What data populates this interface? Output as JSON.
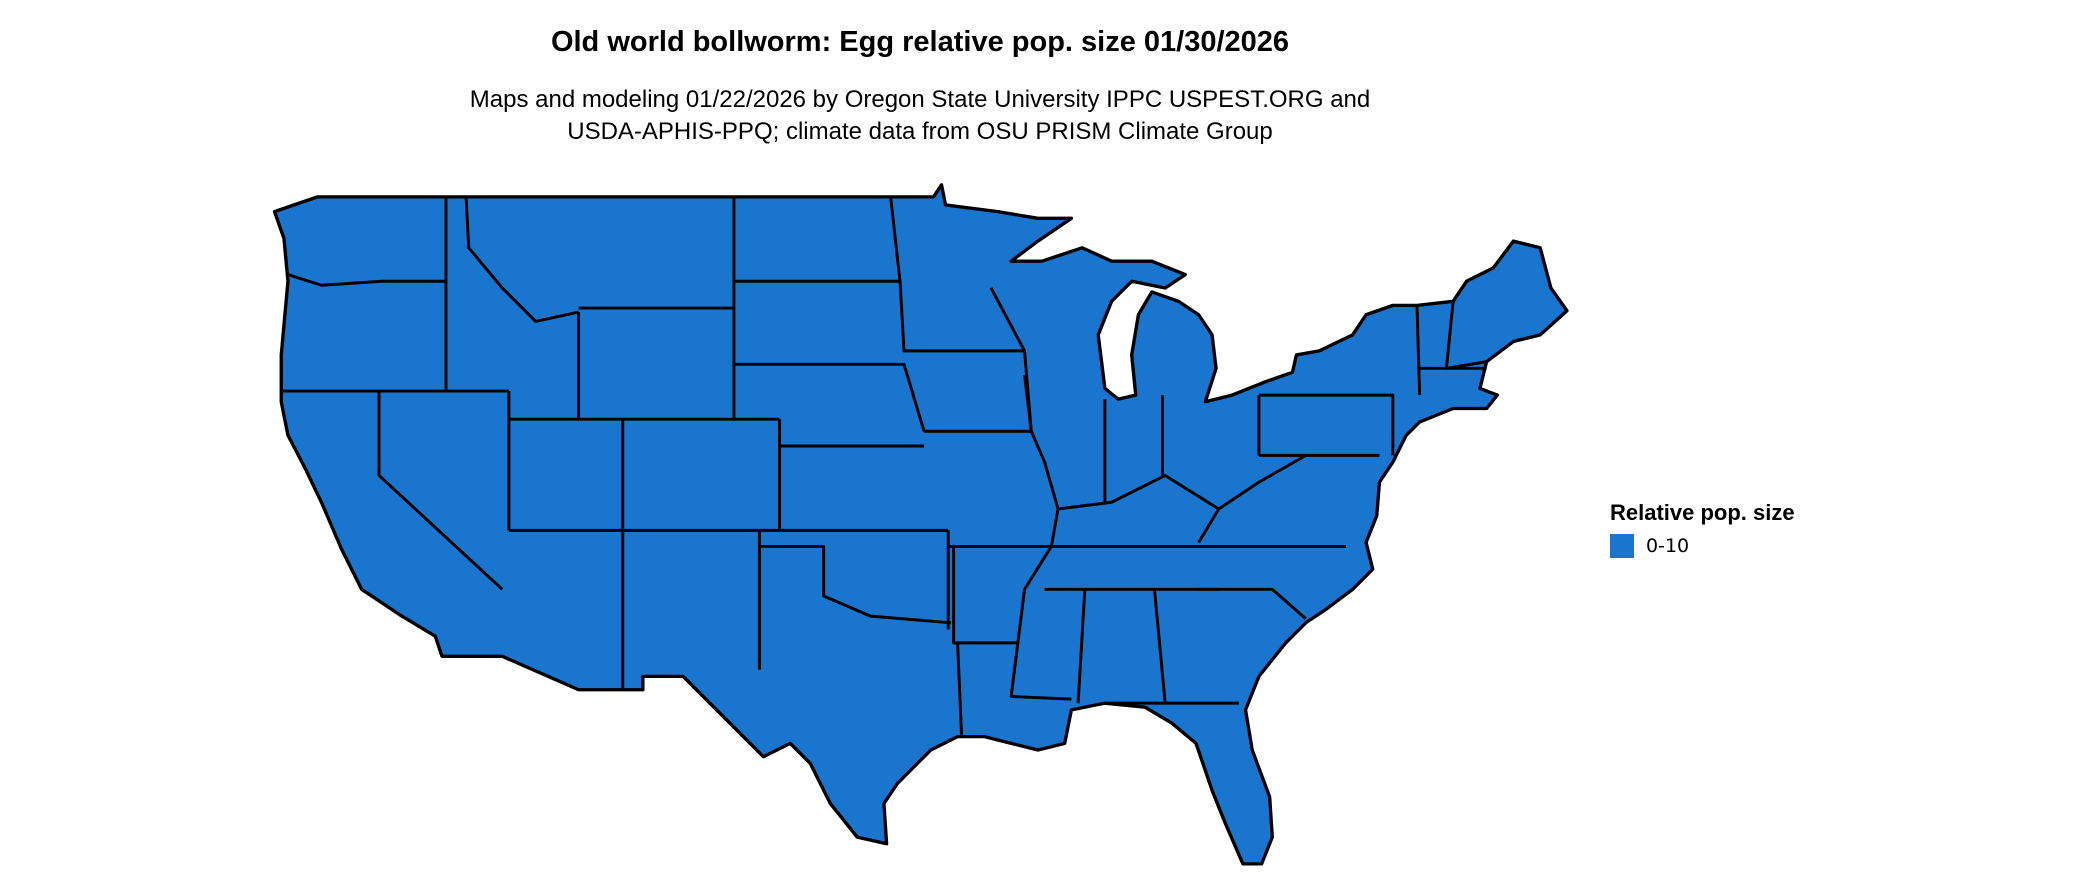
{
  "title": "Old world bollworm: Egg relative pop. size 01/30/2026",
  "subtitle_line1": "Maps and modeling 01/22/2026 by Oregon State University IPPC USPEST.ORG and",
  "subtitle_line2": "USDA-APHIS-PPQ; climate data from OSU PRISM Climate Group",
  "map": {
    "region": "Contiguous United States",
    "fill_color": "#1a75cf",
    "border_color": "#000000"
  },
  "legend": {
    "title": "Relative pop. size",
    "items": [
      {
        "label": "0-10",
        "color": "#1a75cf"
      }
    ]
  }
}
